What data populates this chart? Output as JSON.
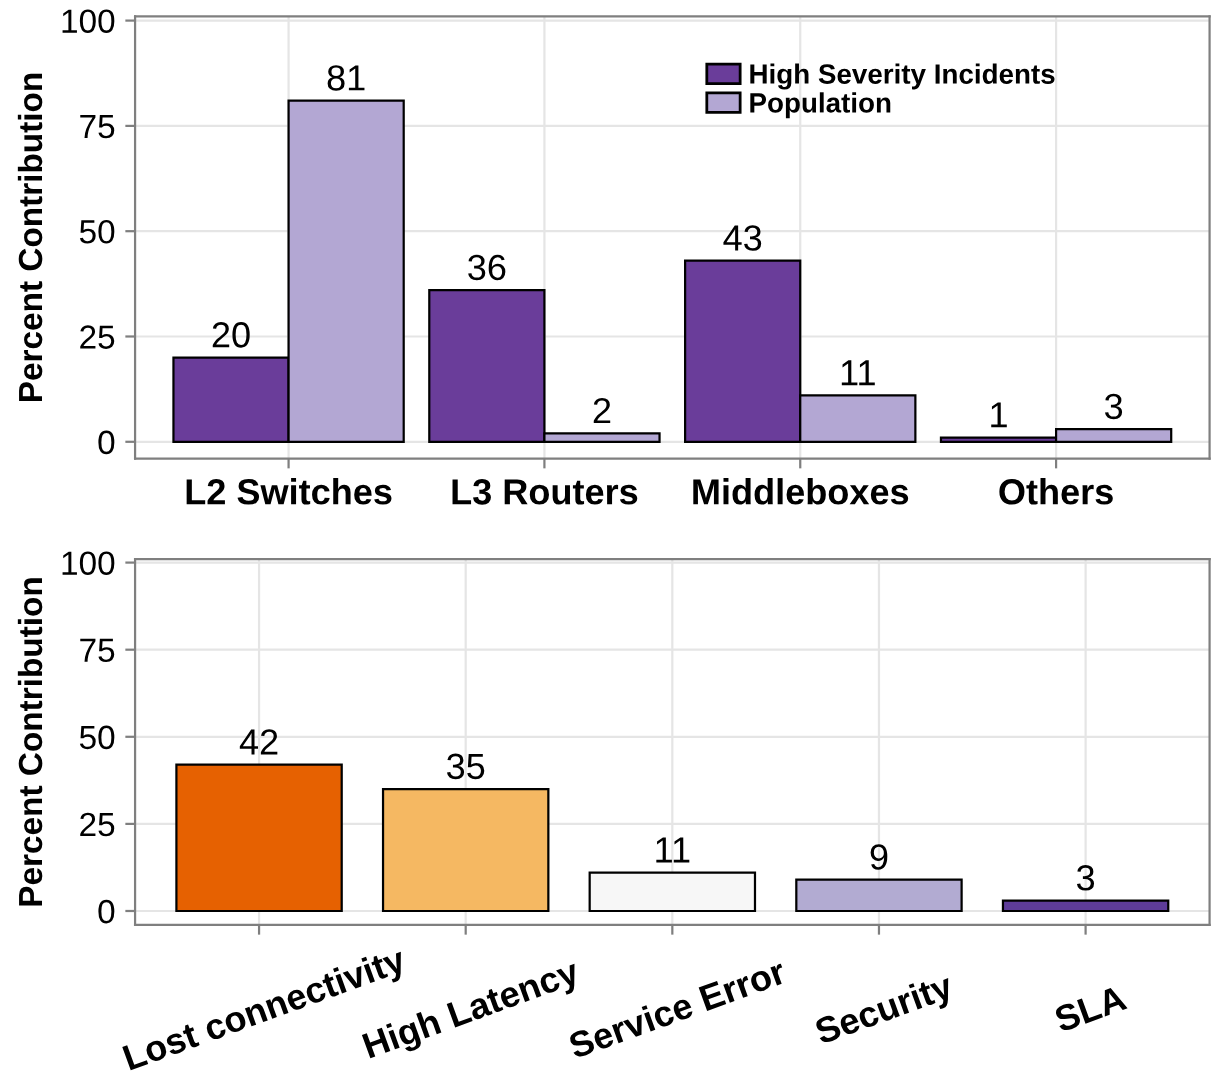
{
  "chart_data": [
    {
      "type": "bar",
      "ylabel": "Percent Contribution",
      "categories": [
        "L2 Switches",
        "L3 Routers",
        "Middleboxes",
        "Others"
      ],
      "series": [
        {
          "name": "High Severity Incidents",
          "color": "#6a3d9a",
          "values": [
            20,
            36,
            43,
            1
          ]
        },
        {
          "name": "Population",
          "color": "#b3a7d3",
          "values": [
            81,
            2,
            11,
            3
          ]
        }
      ],
      "ylim": [
        -4,
        101
      ],
      "yticks": [
        0,
        25,
        50,
        75,
        100
      ],
      "grid": true,
      "legend": "top right",
      "data_labels": true
    },
    {
      "type": "bar",
      "ylabel": "Percent Contribution",
      "categories": [
        "Lost connectivity",
        "High Latency",
        "Service Error",
        "Security",
        "SLA"
      ],
      "values": [
        42,
        35,
        11,
        9,
        3
      ],
      "colors": [
        "#e66101",
        "#f5b862",
        "#f7f7f7",
        "#b2abd2",
        "#5e3c99"
      ],
      "ylim": [
        -4,
        101
      ],
      "yticks": [
        0,
        25,
        50,
        75,
        100
      ],
      "grid": true,
      "data_labels": true
    }
  ]
}
